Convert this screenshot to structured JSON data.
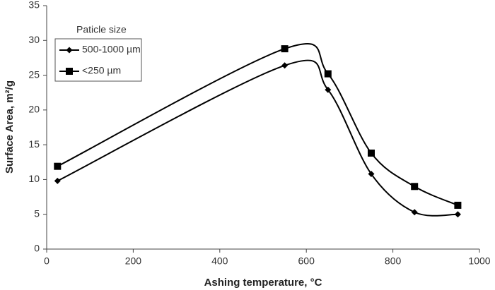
{
  "chart_data": {
    "type": "line",
    "xlabel": "Ashing temperature, °C",
    "ylabel": "Surface Area, m²/g",
    "legend_title": "Paticle size",
    "x": [
      25,
      550,
      650,
      750,
      850,
      950
    ],
    "series": [
      {
        "name": "500-1000 µm",
        "color": "#000000",
        "marker": "diamond",
        "values": [
          9.8,
          26.4,
          22.9,
          10.8,
          5.3,
          5.0
        ]
      },
      {
        "name": "<250 µm",
        "color": "#000000",
        "marker": "square",
        "values": [
          11.9,
          28.8,
          25.2,
          13.8,
          9.0,
          6.3
        ]
      }
    ],
    "xlim": [
      0,
      1000
    ],
    "xticks": [
      0,
      200,
      400,
      600,
      800,
      1000
    ],
    "ylim": [
      0,
      35
    ],
    "yticks": [
      0,
      5,
      10,
      15,
      20,
      25,
      30,
      35
    ],
    "smooth": true,
    "grid": false,
    "legend_position": "upper left"
  }
}
